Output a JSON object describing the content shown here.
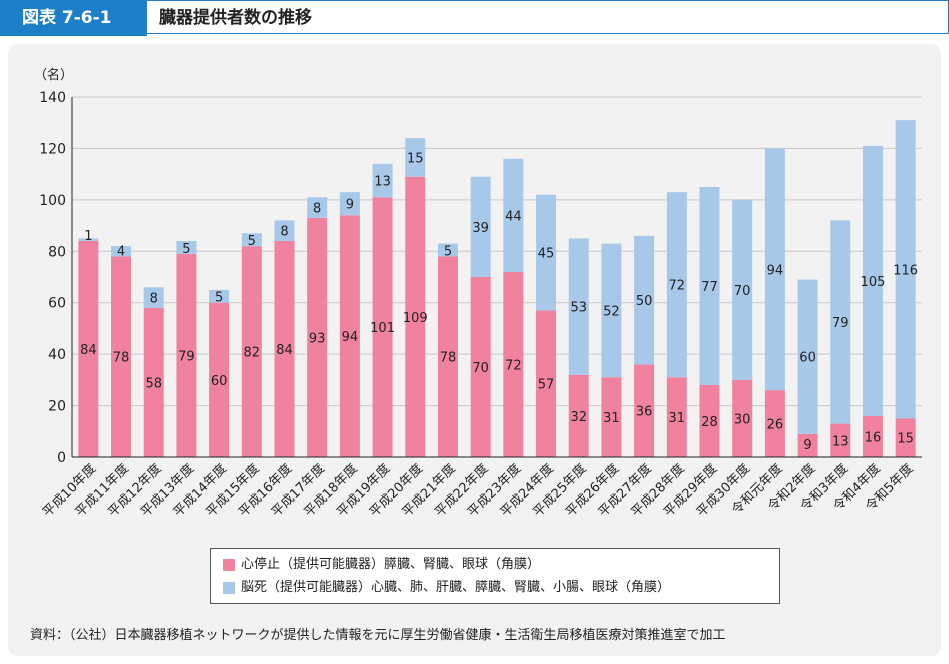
{
  "header": {
    "label": "図表 7-6-1",
    "title": "臓器提供者数の推移"
  },
  "chart_data": {
    "type": "bar",
    "stacked": true,
    "yunit": "（名）",
    "ylim": [
      0,
      140
    ],
    "yticks": [
      0,
      20,
      40,
      60,
      80,
      100,
      120,
      140
    ],
    "grid": true,
    "categories": [
      "平成10年度",
      "平成11年度",
      "平成12年度",
      "平成13年度",
      "平成14年度",
      "平成15年度",
      "平成16年度",
      "平成17年度",
      "平成18年度",
      "平成19年度",
      "平成20年度",
      "平成21年度",
      "平成22年度",
      "平成23年度",
      "平成24年度",
      "平成25年度",
      "平成26年度",
      "平成27年度",
      "平成28年度",
      "平成29年度",
      "平成30年度",
      "令和元年度",
      "令和2年度",
      "令和3年度",
      "令和4年度",
      "令和5年度"
    ],
    "series": [
      {
        "name": "心停止（提供可能臓器）膵臓、腎臓、眼球（角膜）",
        "color": "#f0829f",
        "values": [
          84,
          78,
          58,
          79,
          60,
          82,
          84,
          93,
          94,
          101,
          109,
          78,
          70,
          72,
          57,
          32,
          31,
          36,
          31,
          28,
          30,
          26,
          9,
          13,
          16,
          15
        ]
      },
      {
        "name": "脳死（提供可能臓器）心臓、肺、肝臓、膵臓、腎臓、小腸、眼球（角膜）",
        "color": "#a8c8ea",
        "values": [
          1,
          4,
          8,
          5,
          5,
          5,
          8,
          8,
          9,
          13,
          15,
          5,
          39,
          44,
          45,
          53,
          52,
          50,
          72,
          77,
          70,
          94,
          60,
          79,
          105,
          116
        ]
      }
    ]
  },
  "note": "資料：（公社）日本臓器移植ネットワークが提供した情報を元に厚生労働省健康・生活衛生局移植医療対策推進室で加工"
}
